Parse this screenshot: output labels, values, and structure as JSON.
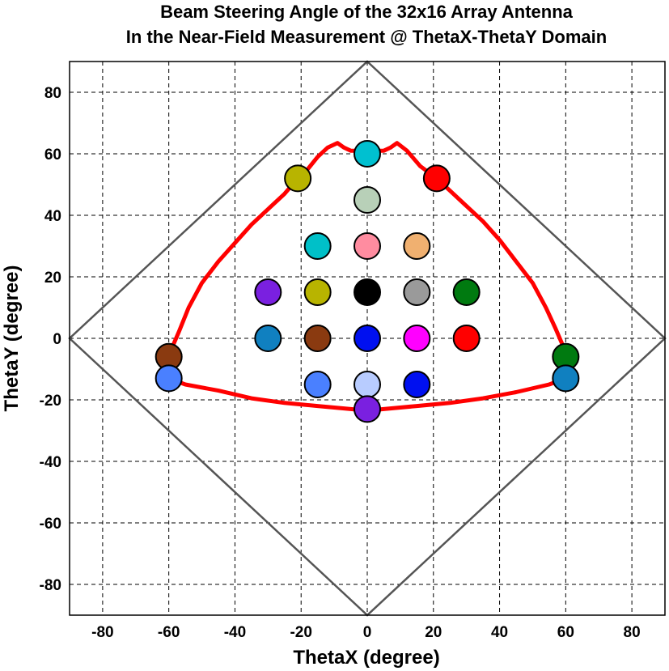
{
  "chart_data": {
    "type": "scatter",
    "title": [
      "Beam Steering Angle of the 32x16 Array Antenna",
      "In the Near-Field Measurement @ ThetaX-ThetaY Domain"
    ],
    "xlabel": "ThetaX (degree)",
    "ylabel": "ThetaY (degree)",
    "xlim": [
      -90,
      90
    ],
    "ylim": [
      -90,
      90
    ],
    "xticks": [
      -80,
      -60,
      -40,
      -20,
      0,
      20,
      40,
      60,
      80
    ],
    "yticks": [
      -80,
      -60,
      -40,
      -20,
      0,
      20,
      40,
      60,
      80
    ],
    "grid": true,
    "diamond": {
      "color": "#555555",
      "points": [
        [
          0,
          90
        ],
        [
          90,
          0
        ],
        [
          0,
          -90
        ],
        [
          -90,
          0
        ]
      ]
    },
    "boundary": {
      "color": "#ff0000",
      "points": [
        [
          -60,
          -6
        ],
        [
          -59,
          -3
        ],
        [
          -57,
          2
        ],
        [
          -54,
          10
        ],
        [
          -50,
          18
        ],
        [
          -45,
          25
        ],
        [
          -40,
          31
        ],
        [
          -35,
          37
        ],
        [
          -30,
          42
        ],
        [
          -25,
          47
        ],
        [
          -21,
          52
        ],
        [
          -18,
          55
        ],
        [
          -15,
          59
        ],
        [
          -12,
          62
        ],
        [
          -9,
          63.5
        ],
        [
          -7,
          62
        ],
        [
          -5,
          61
        ],
        [
          0,
          61
        ],
        [
          5,
          61
        ],
        [
          7,
          62
        ],
        [
          9,
          63.5
        ],
        [
          12,
          61
        ],
        [
          16,
          56
        ],
        [
          21,
          52
        ],
        [
          25,
          48
        ],
        [
          30,
          43
        ],
        [
          35,
          38
        ],
        [
          40,
          32
        ],
        [
          45,
          25
        ],
        [
          50,
          18
        ],
        [
          54,
          10
        ],
        [
          57,
          3
        ],
        [
          59,
          -2
        ],
        [
          60,
          -6
        ],
        [
          60,
          -13
        ],
        [
          55,
          -15
        ],
        [
          45,
          -17.5
        ],
        [
          35,
          -19.5
        ],
        [
          25,
          -21
        ],
        [
          15,
          -22
        ],
        [
          5,
          -23
        ],
        [
          0,
          -23.5
        ],
        [
          -5,
          -23
        ],
        [
          -15,
          -22
        ],
        [
          -25,
          -21
        ],
        [
          -35,
          -19.5
        ],
        [
          -45,
          -17
        ],
        [
          -55,
          -15
        ],
        [
          -60,
          -13
        ],
        [
          -60,
          -6
        ]
      ]
    },
    "points": [
      {
        "x": 0,
        "y": 60,
        "color": "#00c0d0"
      },
      {
        "x": -21,
        "y": 52,
        "color": "#b8b400"
      },
      {
        "x": 21,
        "y": 52,
        "color": "#ff0000"
      },
      {
        "x": 0,
        "y": 45,
        "color": "#b8d0b8"
      },
      {
        "x": -15,
        "y": 30,
        "color": "#00c0c8"
      },
      {
        "x": 0,
        "y": 30,
        "color": "#ff8ca0"
      },
      {
        "x": 15,
        "y": 30,
        "color": "#f0b070"
      },
      {
        "x": -30,
        "y": 15,
        "color": "#7a20e0"
      },
      {
        "x": -15,
        "y": 15,
        "color": "#b8b400"
      },
      {
        "x": 0,
        "y": 15,
        "color": "#000000"
      },
      {
        "x": 15,
        "y": 15,
        "color": "#9a9a9a"
      },
      {
        "x": 30,
        "y": 15,
        "color": "#007a10"
      },
      {
        "x": -30,
        "y": 0,
        "color": "#1080c0"
      },
      {
        "x": -15,
        "y": 0,
        "color": "#8a3a10"
      },
      {
        "x": 0,
        "y": 0,
        "color": "#0010f0"
      },
      {
        "x": 15,
        "y": 0,
        "color": "#ff00ff"
      },
      {
        "x": 30,
        "y": 0,
        "color": "#ff0000"
      },
      {
        "x": -60,
        "y": -6,
        "color": "#8a3a10"
      },
      {
        "x": 60,
        "y": -6,
        "color": "#007a10"
      },
      {
        "x": -60,
        "y": -13,
        "color": "#4a80ff"
      },
      {
        "x": 60,
        "y": -13,
        "color": "#1080c0"
      },
      {
        "x": -15,
        "y": -15,
        "color": "#4a80ff"
      },
      {
        "x": 0,
        "y": -15,
        "color": "#b8ccff"
      },
      {
        "x": 15,
        "y": -15,
        "color": "#0010f0"
      },
      {
        "x": 0,
        "y": -23,
        "color": "#7a20e0"
      }
    ]
  }
}
